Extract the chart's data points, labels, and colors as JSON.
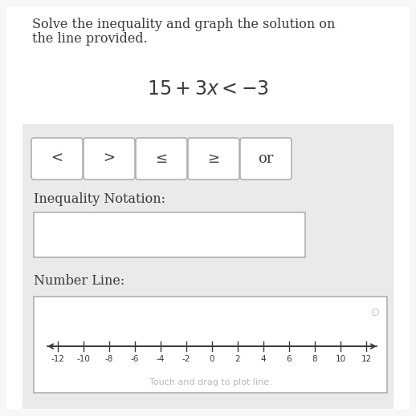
{
  "title_line1": "Solve the inequality and graph the solution on",
  "title_line2": "the line provided.",
  "equation": "15 + 3x < −3",
  "buttons": [
    "<",
    ">",
    "≤",
    "≥",
    "or"
  ],
  "inequality_label": "Inequality Notation:",
  "number_line_label": "Number Line:",
  "number_line_hint": "Touch and drag to plot line.",
  "tick_values": [
    -12,
    -10,
    -8,
    -6,
    -4,
    -2,
    0,
    2,
    4,
    6,
    8,
    10,
    12
  ],
  "page_bg": "#f7f7f7",
  "white_bg": "#ffffff",
  "panel_bg": "#eaeaea",
  "text_dark": "#3a3a3a",
  "border_color": "#b0b0b0",
  "hint_color": "#b8b8b8",
  "cancel_color": "#d0b8b8",
  "title_fontsize": 11.5,
  "equation_fontsize": 17,
  "button_fontsize": 13,
  "label_fontsize": 11.5,
  "tick_label_fontsize": 7.5,
  "hint_fontsize": 8
}
